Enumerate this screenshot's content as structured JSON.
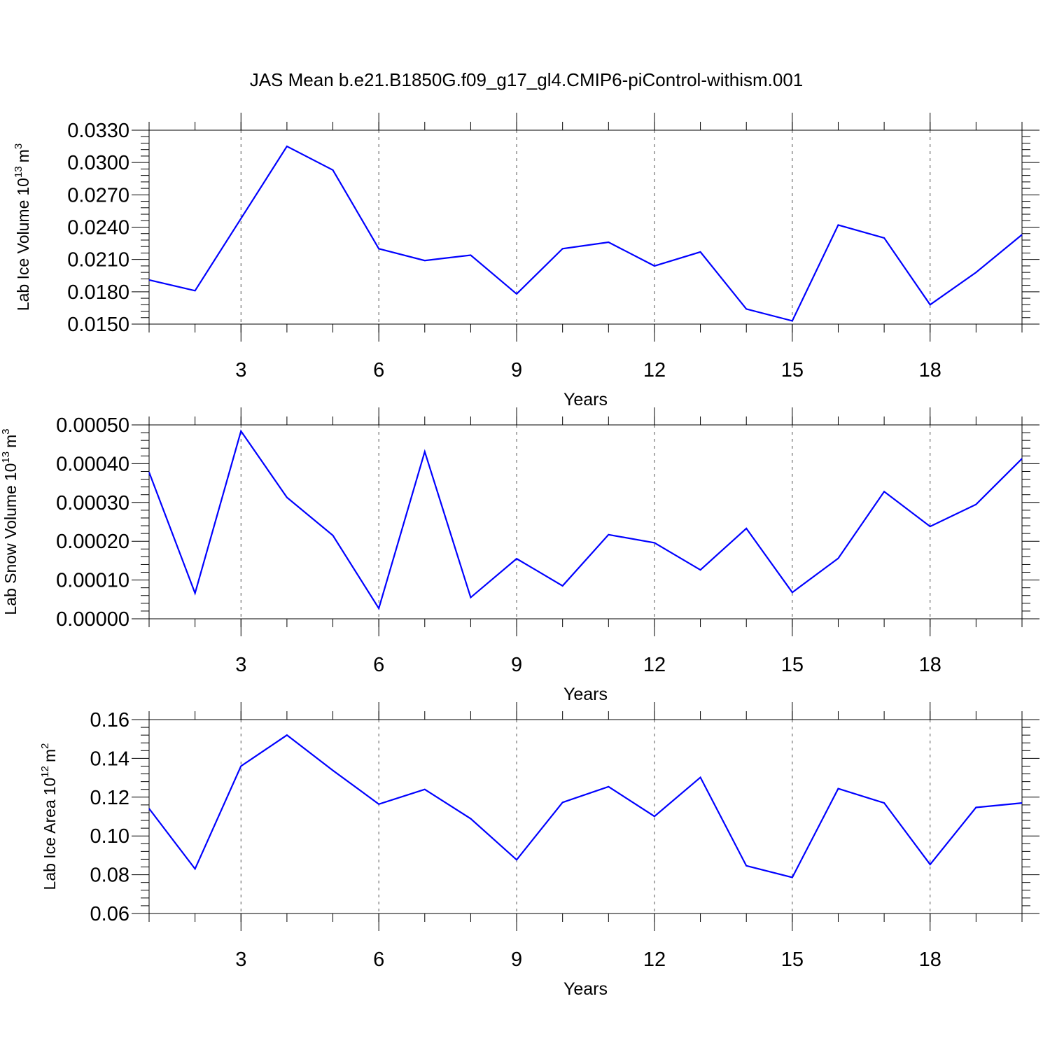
{
  "title": "JAS Mean b.e21.B1850G.f09_g17_gl4.CMIP6-piControl-withism.001",
  "colors": {
    "line": "#0000ff",
    "axis": "#000000",
    "grid": "#555555"
  },
  "chart_data": [
    {
      "type": "line",
      "xlabel": "Years",
      "ylabel": {
        "text": "Lab Ice Volume",
        "base": "10",
        "exp": "13",
        "unit": "m",
        "unit_exp": "3"
      },
      "xlim": [
        1,
        20
      ],
      "ylim": [
        0.015,
        0.033
      ],
      "xticks": [
        3,
        6,
        9,
        12,
        15,
        18
      ],
      "yticks": [
        "0.0150",
        "0.0180",
        "0.0210",
        "0.0240",
        "0.0270",
        "0.0300",
        "0.0330"
      ],
      "x": [
        1,
        2,
        3,
        4,
        5,
        6,
        7,
        8,
        9,
        10,
        11,
        12,
        13,
        14,
        15,
        16,
        17,
        18,
        19,
        20
      ],
      "values": [
        0.0191,
        0.0181,
        0.0248,
        0.0315,
        0.0293,
        0.022,
        0.0209,
        0.0214,
        0.0178,
        0.022,
        0.0226,
        0.0204,
        0.0217,
        0.0164,
        0.0153,
        0.0242,
        0.023,
        0.0168,
        0.0198,
        0.0233
      ]
    },
    {
      "type": "line",
      "xlabel": "Years",
      "ylabel": {
        "text": "Lab Snow Volume",
        "base": "10",
        "exp": "13",
        "unit": "m",
        "unit_exp": "3"
      },
      "xlim": [
        1,
        20
      ],
      "ylim": [
        0.0,
        0.0005
      ],
      "xticks": [
        3,
        6,
        9,
        12,
        15,
        18
      ],
      "yticks": [
        "0.00000",
        "0.00010",
        "0.00020",
        "0.00030",
        "0.00040",
        "0.00050"
      ],
      "x": [
        1,
        2,
        3,
        4,
        5,
        6,
        7,
        8,
        9,
        10,
        11,
        12,
        13,
        14,
        15,
        16,
        17,
        18,
        19,
        20
      ],
      "values": [
        0.000378,
        6.6e-05,
        0.000484,
        0.000313,
        0.000215,
        2.7e-05,
        0.000431,
        5.5e-05,
        0.000155,
        8.5e-05,
        0.000217,
        0.000196,
        0.000126,
        0.000233,
        6.8e-05,
        0.000156,
        0.000328,
        0.000238,
        0.000295,
        0.000413
      ]
    },
    {
      "type": "line",
      "xlabel": "Years",
      "ylabel": {
        "text": "Lab Ice Area",
        "base": "10",
        "exp": "12",
        "unit": "m",
        "unit_exp": "2"
      },
      "xlim": [
        1,
        20
      ],
      "ylim": [
        0.06,
        0.16
      ],
      "xticks": [
        3,
        6,
        9,
        12,
        15,
        18
      ],
      "yticks": [
        "0.06",
        "0.08",
        "0.10",
        "0.12",
        "0.14",
        "0.16"
      ],
      "x": [
        1,
        2,
        3,
        4,
        5,
        6,
        7,
        8,
        9,
        10,
        11,
        12,
        13,
        14,
        15,
        16,
        17,
        18,
        19,
        20
      ],
      "values": [
        0.1141,
        0.083,
        0.136,
        0.152,
        0.1338,
        0.1164,
        0.124,
        0.1089,
        0.0877,
        0.1173,
        0.1254,
        0.1101,
        0.1302,
        0.0846,
        0.0786,
        0.1244,
        0.117,
        0.0853,
        0.1147,
        0.117
      ]
    }
  ]
}
